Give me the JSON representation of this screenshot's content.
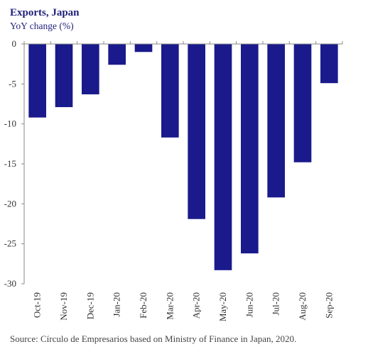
{
  "chart_data": {
    "type": "bar",
    "title": "Exports, Japan",
    "subtitle": "YoY change (%)",
    "xlabel": "",
    "ylabel": "",
    "categories": [
      "Oct-19",
      "Nov-19",
      "Dec-19",
      "Jan-20",
      "Feb-20",
      "Mar-20",
      "Apr-20",
      "May-20",
      "Jun-20",
      "Jul-20",
      "Aug-20",
      "Sep-20"
    ],
    "values": [
      -9.2,
      -7.9,
      -6.3,
      -2.6,
      -1.0,
      -11.7,
      -21.9,
      -28.3,
      -26.2,
      -19.2,
      -14.8,
      -4.9
    ],
    "ylim": [
      -30,
      0
    ],
    "yticks": [
      0,
      -5,
      -10,
      -15,
      -20,
      -25,
      -30
    ],
    "ytick_labels": [
      "0",
      "-5",
      "-10",
      "-15",
      "-20",
      "-25",
      "-30"
    ],
    "grid": false,
    "bar_color": "#1a1a8c",
    "source": "Source: Círculo de Empresarios based on Ministry of Finance in Japan, 2020."
  }
}
